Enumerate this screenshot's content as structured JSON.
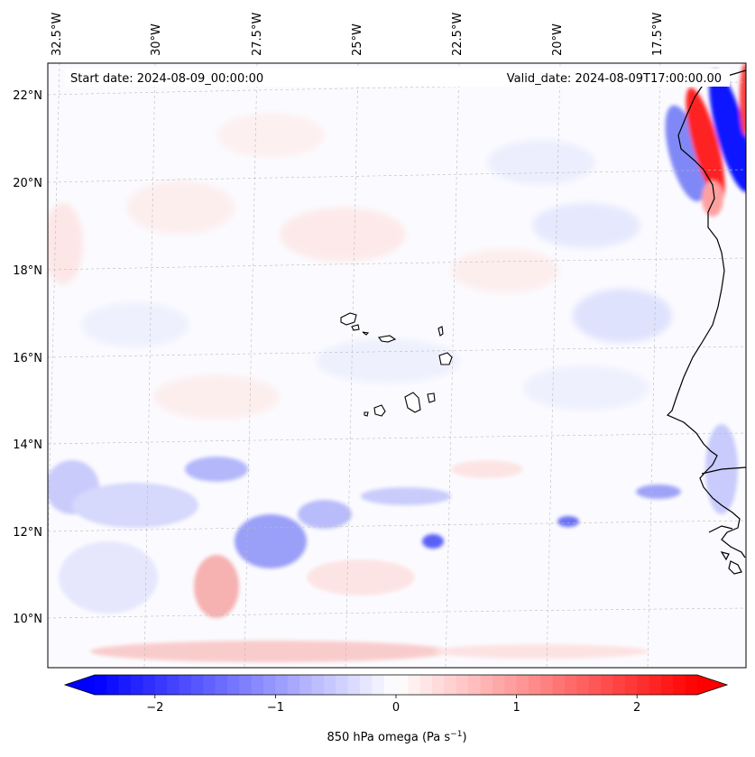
{
  "header": {
    "start_date": "Start date: 2024-08-09_00:00:00",
    "valid_date": "Valid_date: 2024-08-09T17:00:00.00"
  },
  "map": {
    "lon_labels": [
      "32.5°W",
      "30°W",
      "27.5°W",
      "25°W",
      "22.5°W",
      "20°W",
      "17.5°W"
    ],
    "lat_labels": [
      "22°N",
      "20°N",
      "18°N",
      "16°N",
      "14°N",
      "12°N",
      "10°N"
    ],
    "variable": "850 hPa omega",
    "colormap": "bwr"
  },
  "colorbar": {
    "ticks": [
      "−2",
      "−1",
      "0",
      "1",
      "2"
    ],
    "tick_values": [
      -2,
      -1,
      0,
      1,
      2
    ],
    "range": [
      -2.5,
      2.5
    ],
    "label_prefix": "850 hPa omega (Pa s",
    "label_sup": "−1",
    "label_suffix": ")",
    "neg_color": "#0000ff",
    "mid_color": "#ffffff",
    "pos_color": "#ff0000"
  }
}
